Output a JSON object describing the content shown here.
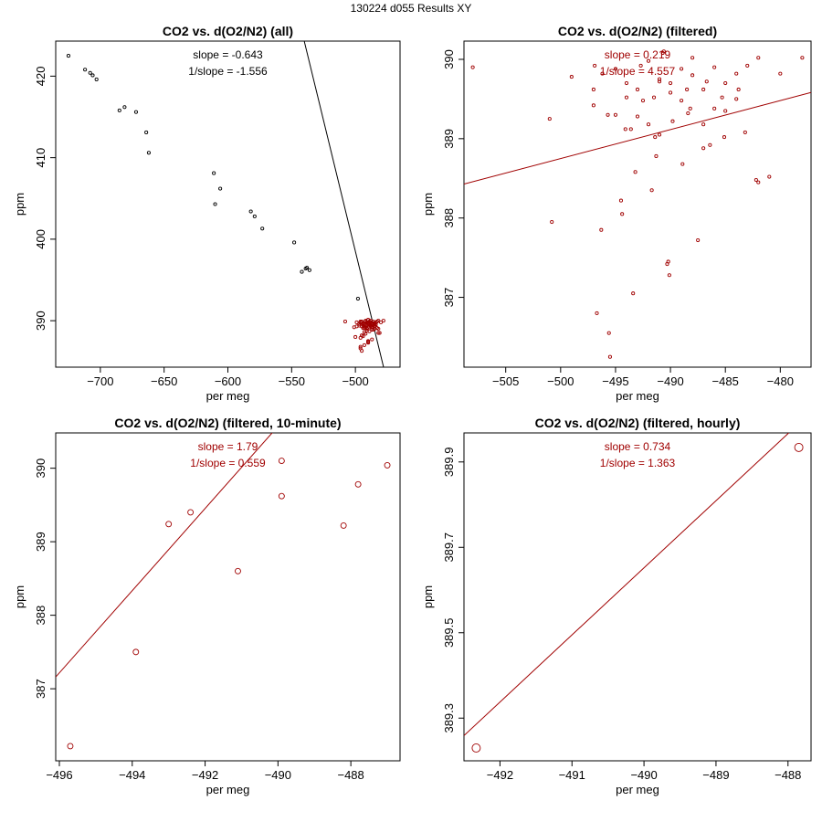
{
  "figure_title": "130224   d055   Results XY",
  "colors": {
    "black": "#000000",
    "red": "#a00000"
  },
  "chart_data": [
    {
      "type": "scatter",
      "title": "CO2 vs. d(O2/N2) (all)",
      "xlabel": "per meg",
      "ylabel": "ppm",
      "xlim": [
        -735,
        -465
      ],
      "ylim": [
        384.3,
        424.3
      ],
      "xticks": [
        -700,
        -650,
        -600,
        -550,
        -500
      ],
      "yticks": [
        390,
        400,
        410,
        420
      ],
      "annotations": [
        "slope = -0.643",
        "1/slope = -1.556"
      ],
      "annotation_color": "black",
      "fit_line": {
        "slope": -0.643,
        "intercept": 77.0,
        "color": "black"
      },
      "series": [
        {
          "name": "all",
          "color": "black",
          "marker_size": 1.6,
          "x": [
            -725,
            -712,
            -708,
            -706,
            -703,
            -685,
            -681,
            -672,
            -664,
            -662,
            -611,
            -610,
            -606,
            -582,
            -579,
            -573,
            -548,
            -542,
            -539,
            -538,
            -536,
            -498
          ],
          "y": [
            422.5,
            420.8,
            420.4,
            420.1,
            419.6,
            415.8,
            416.2,
            415.6,
            413.1,
            410.6,
            408.1,
            404.3,
            406.2,
            403.4,
            402.8,
            401.3,
            399.6,
            396.0,
            396.4,
            396.5,
            396.2,
            392.7
          ]
        },
        {
          "name": "filtered",
          "color": "red",
          "marker_size": 1.6,
          "x": [
            -508,
            -501,
            -499,
            -497,
            -497,
            -495,
            -495,
            -494,
            -494,
            -493,
            -493,
            -492,
            -492,
            -491,
            -491,
            -490,
            -490,
            -489,
            -489,
            -488,
            -488,
            -487,
            -487,
            -486,
            -486,
            -485,
            -485,
            -484,
            -484,
            -483,
            -482,
            -482,
            -481,
            -480,
            -478,
            -500,
            -499,
            -496,
            -496,
            -495,
            -493,
            -492,
            -491,
            -490,
            -489,
            -487,
            -496,
            -495,
            -494,
            -493,
            -492,
            -491,
            -490,
            -490,
            -489,
            -488,
            -487,
            -486,
            -485,
            -484,
            -496,
            -494,
            -492,
            -491,
            -490,
            -489,
            -488,
            -486,
            -485,
            -483,
            -482,
            -491,
            -490,
            -496,
            -493
          ],
          "y": [
            389.9,
            389.2,
            389.8,
            389.6,
            389.4,
            389.3,
            389.9,
            389.7,
            389.5,
            389.3,
            389.6,
            389.2,
            390.0,
            389.1,
            389.8,
            389.6,
            389.7,
            389.9,
            389.5,
            390.0,
            389.8,
            389.2,
            389.6,
            389.4,
            389.9,
            389.3,
            389.7,
            389.5,
            389.8,
            389.9,
            389.0,
            390.0,
            388.5,
            389.8,
            390.0,
            388.0,
            389.3,
            387.9,
            386.6,
            388.2,
            388.6,
            389.5,
            388.8,
            387.5,
            388.7,
            387.7,
            386.8,
            386.3,
            388.1,
            387.0,
            388.4,
            389.0,
            387.4,
            387.3,
            389.6,
            389.4,
            388.9,
            388.9,
            389.0,
            389.6,
            389.8,
            389.1,
            389.9,
            389.5,
            390.1,
            389.2,
            389.3,
            389.7,
            389.5,
            389.1,
            388.5,
            389.7,
            390.1,
            389.9,
            389.1
          ]
        }
      ]
    },
    {
      "type": "scatter",
      "title": "CO2 vs. d(O2/N2) (filtered)",
      "xlabel": "per meg",
      "ylabel": "ppm",
      "xlim": [
        -508.8,
        -477.2
      ],
      "ylim": [
        386.12,
        390.23
      ],
      "xticks": [
        -505,
        -500,
        -495,
        -490,
        -485,
        -480
      ],
      "yticks": [
        387,
        388,
        389,
        390
      ],
      "annotations": [
        "slope = 0.219",
        "1/slope = 4.557"
      ],
      "annotation_color": "red",
      "fit_line": {
        "slope": 0.0365,
        "intercept": 407.0,
        "color": "red"
      },
      "series": [
        {
          "name": "filtered",
          "color": "red",
          "marker_size": 1.6,
          "x": [
            -508,
            -501,
            -499,
            -497,
            -497,
            -495,
            -495,
            -494,
            -494,
            -493,
            -493,
            -492,
            -492,
            -491,
            -491,
            -490,
            -490,
            -489,
            -489,
            -488,
            -488,
            -487,
            -487,
            -486,
            -486,
            -485,
            -485,
            -484,
            -484,
            -483,
            -482,
            -482,
            -481,
            -480,
            -478,
            -500.8,
            -495.7,
            -496.3,
            -495.6,
            -494.5,
            -493.2,
            -492.5,
            -491.3,
            -490.2,
            -488.9,
            -487.5,
            -496.7,
            -495.5,
            -494.4,
            -493.4,
            -491.7,
            -491.4,
            -490.3,
            -490.1,
            -488.5,
            -488.2,
            -487.0,
            -486.4,
            -485.1,
            -483.8,
            -496.2,
            -494.1,
            -492.7,
            -491.5,
            -490.6,
            -489.8,
            -488.4,
            -486.7,
            -485.3,
            -483.2,
            -482.2,
            -491.0,
            -490.7,
            -496.9,
            -493.6
          ],
          "y": [
            389.9,
            389.25,
            389.78,
            389.62,
            389.42,
            389.3,
            389.88,
            389.7,
            389.52,
            389.28,
            389.62,
            389.18,
            389.98,
            389.05,
            389.75,
            389.58,
            389.7,
            389.88,
            389.48,
            390.02,
            389.8,
            389.18,
            389.62,
            389.38,
            389.9,
            389.35,
            389.7,
            389.5,
            389.82,
            389.92,
            388.45,
            390.02,
            388.52,
            389.82,
            390.02,
            387.95,
            389.3,
            387.85,
            386.55,
            388.22,
            388.58,
            389.48,
            388.78,
            387.45,
            388.68,
            387.72,
            386.8,
            386.25,
            388.05,
            387.05,
            388.35,
            389.02,
            387.42,
            387.28,
            389.62,
            389.38,
            388.88,
            388.92,
            389.02,
            389.62,
            389.82,
            389.12,
            389.92,
            389.52,
            390.1,
            389.22,
            389.32,
            389.72,
            389.52,
            389.08,
            388.48,
            389.72,
            390.08,
            389.92,
            389.12
          ]
        }
      ]
    },
    {
      "type": "scatter",
      "title": "CO2 vs. d(O2/N2) (filtered, 10-minute)",
      "xlabel": "per meg",
      "ylabel": "ppm",
      "xlim": [
        -496.1,
        -486.65
      ],
      "ylim": [
        386.02,
        390.48
      ],
      "xticks": [
        -496,
        -494,
        -492,
        -490,
        -488
      ],
      "yticks": [
        387,
        388,
        389,
        390
      ],
      "annotations": [
        "slope = 1.79",
        "1/slope = 0.559"
      ],
      "annotation_color": "red",
      "fit_line": {
        "slope": 0.559,
        "intercept": 664.48,
        "color": "red"
      },
      "series": [
        {
          "name": "10-minute",
          "color": "red",
          "marker_size": 3,
          "x": [
            -495.7,
            -493.9,
            -493.0,
            -492.4,
            -491.1,
            -489.9,
            -489.9,
            -488.2,
            -487.8,
            -487.0
          ],
          "y": [
            386.22,
            387.5,
            389.24,
            389.4,
            388.6,
            390.1,
            389.62,
            389.22,
            389.78,
            390.04
          ]
        }
      ]
    },
    {
      "type": "scatter",
      "title": "CO2 vs. d(O2/N2) (filtered, hourly)",
      "xlabel": "per meg",
      "ylabel": "ppm",
      "xlim": [
        -492.5,
        -487.68
      ],
      "ylim": [
        389.2,
        389.968
      ],
      "xticks": [
        -492,
        -491,
        -490,
        -489,
        -488
      ],
      "yticks": [
        389.3,
        389.5,
        389.7,
        389.9
      ],
      "annotations": [
        "slope = 0.734",
        "1/slope = 1.363"
      ],
      "annotation_color": "red",
      "fit_line": {
        "slope": 0.1572,
        "intercept": 466.68,
        "color": "red"
      },
      "series": [
        {
          "name": "hourly",
          "color": "red",
          "marker_size": 4.5,
          "x": [
            -492.33,
            -487.85
          ],
          "y": [
            389.23,
            389.934
          ]
        }
      ]
    }
  ]
}
